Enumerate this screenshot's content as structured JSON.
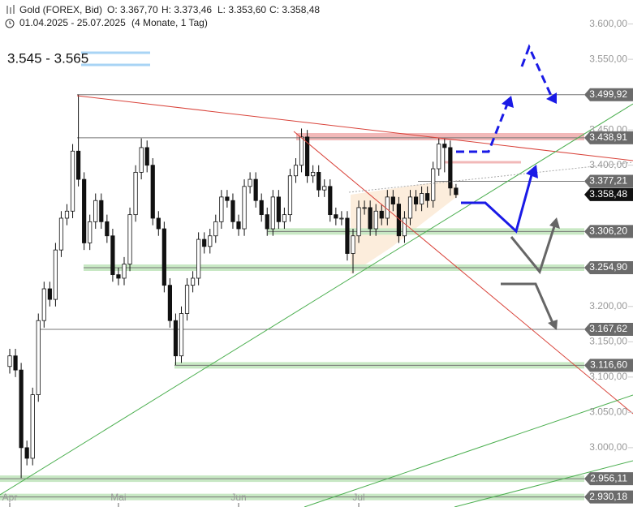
{
  "chart_data": {
    "type": "candlestick",
    "title": "Gold (FOREX, Bid)",
    "ohlc_header": [
      "O: 3.367,70",
      "H: 3.373,46",
      "L: 3.353,60",
      "C: 3.358,48"
    ],
    "date_range": "01.04.2025 - 25.07.2025",
    "period": "(4 Monate, 1 Tag)",
    "annotation": "3.545 - 3.565",
    "open": [
      3115,
      3130,
      3110,
      3000,
      2985,
      3075,
      3180,
      3225,
      3210,
      3280,
      3325,
      3335,
      3420,
      3380,
      3290,
      3320,
      3350,
      3320,
      3300,
      3245,
      3240,
      3260,
      3330,
      3390,
      3425,
      3400,
      3325,
      3310,
      3230,
      3180,
      3130,
      3190,
      3230,
      3240,
      3295,
      3285,
      3300,
      3320,
      3355,
      3350,
      3320,
      3310,
      3370,
      3380,
      3350,
      3330,
      3310,
      3355,
      3320,
      3330,
      3385,
      3400,
      3440,
      3385,
      3390,
      3365,
      3370,
      3330,
      3325,
      3325,
      3275,
      3300,
      3340,
      3340,
      3310,
      3335,
      3325,
      3355,
      3345,
      3300,
      3325,
      3355,
      3345,
      3360,
      3350,
      3395,
      3430,
      3425,
      3367.7
    ],
    "high": [
      3140,
      3140,
      3120,
      3010,
      3085,
      3190,
      3235,
      3235,
      3290,
      3335,
      3345,
      3430,
      3500,
      3390,
      3330,
      3360,
      3360,
      3330,
      3310,
      3255,
      3270,
      3340,
      3400,
      3438,
      3435,
      3410,
      3335,
      3320,
      3240,
      3190,
      3200,
      3240,
      3250,
      3305,
      3305,
      3310,
      3330,
      3365,
      3365,
      3360,
      3330,
      3380,
      3390,
      3390,
      3360,
      3340,
      3365,
      3365,
      3340,
      3395,
      3410,
      3452,
      3450,
      3400,
      3400,
      3380,
      3380,
      3340,
      3335,
      3335,
      3310,
      3350,
      3350,
      3350,
      3345,
      3345,
      3365,
      3365,
      3355,
      3335,
      3365,
      3365,
      3370,
      3370,
      3405,
      3438,
      3438,
      3435,
      3373.46
    ],
    "low": [
      3105,
      3100,
      2957,
      2975,
      2975,
      3065,
      3170,
      3200,
      3200,
      3270,
      3315,
      3325,
      3370,
      3280,
      3280,
      3310,
      3310,
      3290,
      3235,
      3230,
      3230,
      3250,
      3320,
      3380,
      3390,
      3315,
      3300,
      3220,
      3170,
      3117,
      3120,
      3180,
      3220,
      3230,
      3275,
      3275,
      3290,
      3310,
      3340,
      3310,
      3300,
      3300,
      3360,
      3340,
      3320,
      3300,
      3300,
      3310,
      3310,
      3320,
      3375,
      3390,
      3375,
      3375,
      3355,
      3355,
      3320,
      3315,
      3315,
      3265,
      3247,
      3290,
      3330,
      3300,
      3300,
      3315,
      3315,
      3335,
      3290,
      3290,
      3315,
      3335,
      3335,
      3340,
      3340,
      3385,
      3390,
      3357,
      3353.6
    ],
    "close": [
      3130,
      3110,
      3000,
      2985,
      3075,
      3180,
      3225,
      3210,
      3280,
      3325,
      3335,
      3420,
      3380,
      3290,
      3320,
      3350,
      3320,
      3300,
      3245,
      3240,
      3260,
      3330,
      3390,
      3425,
      3400,
      3325,
      3310,
      3230,
      3180,
      3130,
      3190,
      3230,
      3240,
      3295,
      3285,
      3300,
      3320,
      3355,
      3350,
      3320,
      3310,
      3370,
      3380,
      3350,
      3330,
      3310,
      3355,
      3320,
      3330,
      3385,
      3400,
      3440,
      3385,
      3390,
      3365,
      3370,
      3330,
      3325,
      3325,
      3275,
      3300,
      3340,
      3340,
      3310,
      3335,
      3325,
      3355,
      3345,
      3300,
      3325,
      3355,
      3345,
      3360,
      3350,
      3395,
      3430,
      3425,
      3367.7,
      3358.48
    ],
    "xticks": [
      {
        "value": 0,
        "label": "Apr"
      },
      {
        "value": 19,
        "label": "Mai"
      },
      {
        "value": 40,
        "label": "Jun"
      },
      {
        "value": 61,
        "label": "Jul"
      }
    ],
    "ylim": [
      2916,
      3634
    ],
    "yticks": [
      {
        "value": 3600,
        "label": "3.600,00"
      },
      {
        "value": 3550,
        "label": "3.550,00"
      },
      {
        "value": 3450,
        "label": "3.450,00"
      },
      {
        "value": 3400,
        "label": "3.400,00"
      },
      {
        "value": 3200,
        "label": "3.200,00"
      },
      {
        "value": 3150,
        "label": "3.150,00"
      },
      {
        "value": 3100,
        "label": "3.100,00"
      },
      {
        "value": 3050,
        "label": "3.050,00"
      },
      {
        "value": 3000,
        "label": "3.000,00"
      }
    ],
    "levels": [
      {
        "value": 3499.92,
        "label": "3.499,92"
      },
      {
        "value": 3438.91,
        "label": "3.438,91"
      },
      {
        "value": 3377.21,
        "label": "3.377,21"
      },
      {
        "value": 3358.48,
        "label": "3.358,48"
      },
      {
        "value": 3306.2,
        "label": "3.306,20"
      },
      {
        "value": 3254.9,
        "label": "3.254,90"
      },
      {
        "value": 3167.62,
        "label": "3.167,62"
      },
      {
        "value": 3116.6,
        "label": "3.116,60"
      },
      {
        "value": 2956.11,
        "label": "2.956,11"
      },
      {
        "value": 2930.18,
        "label": "2.930,18"
      }
    ]
  }
}
